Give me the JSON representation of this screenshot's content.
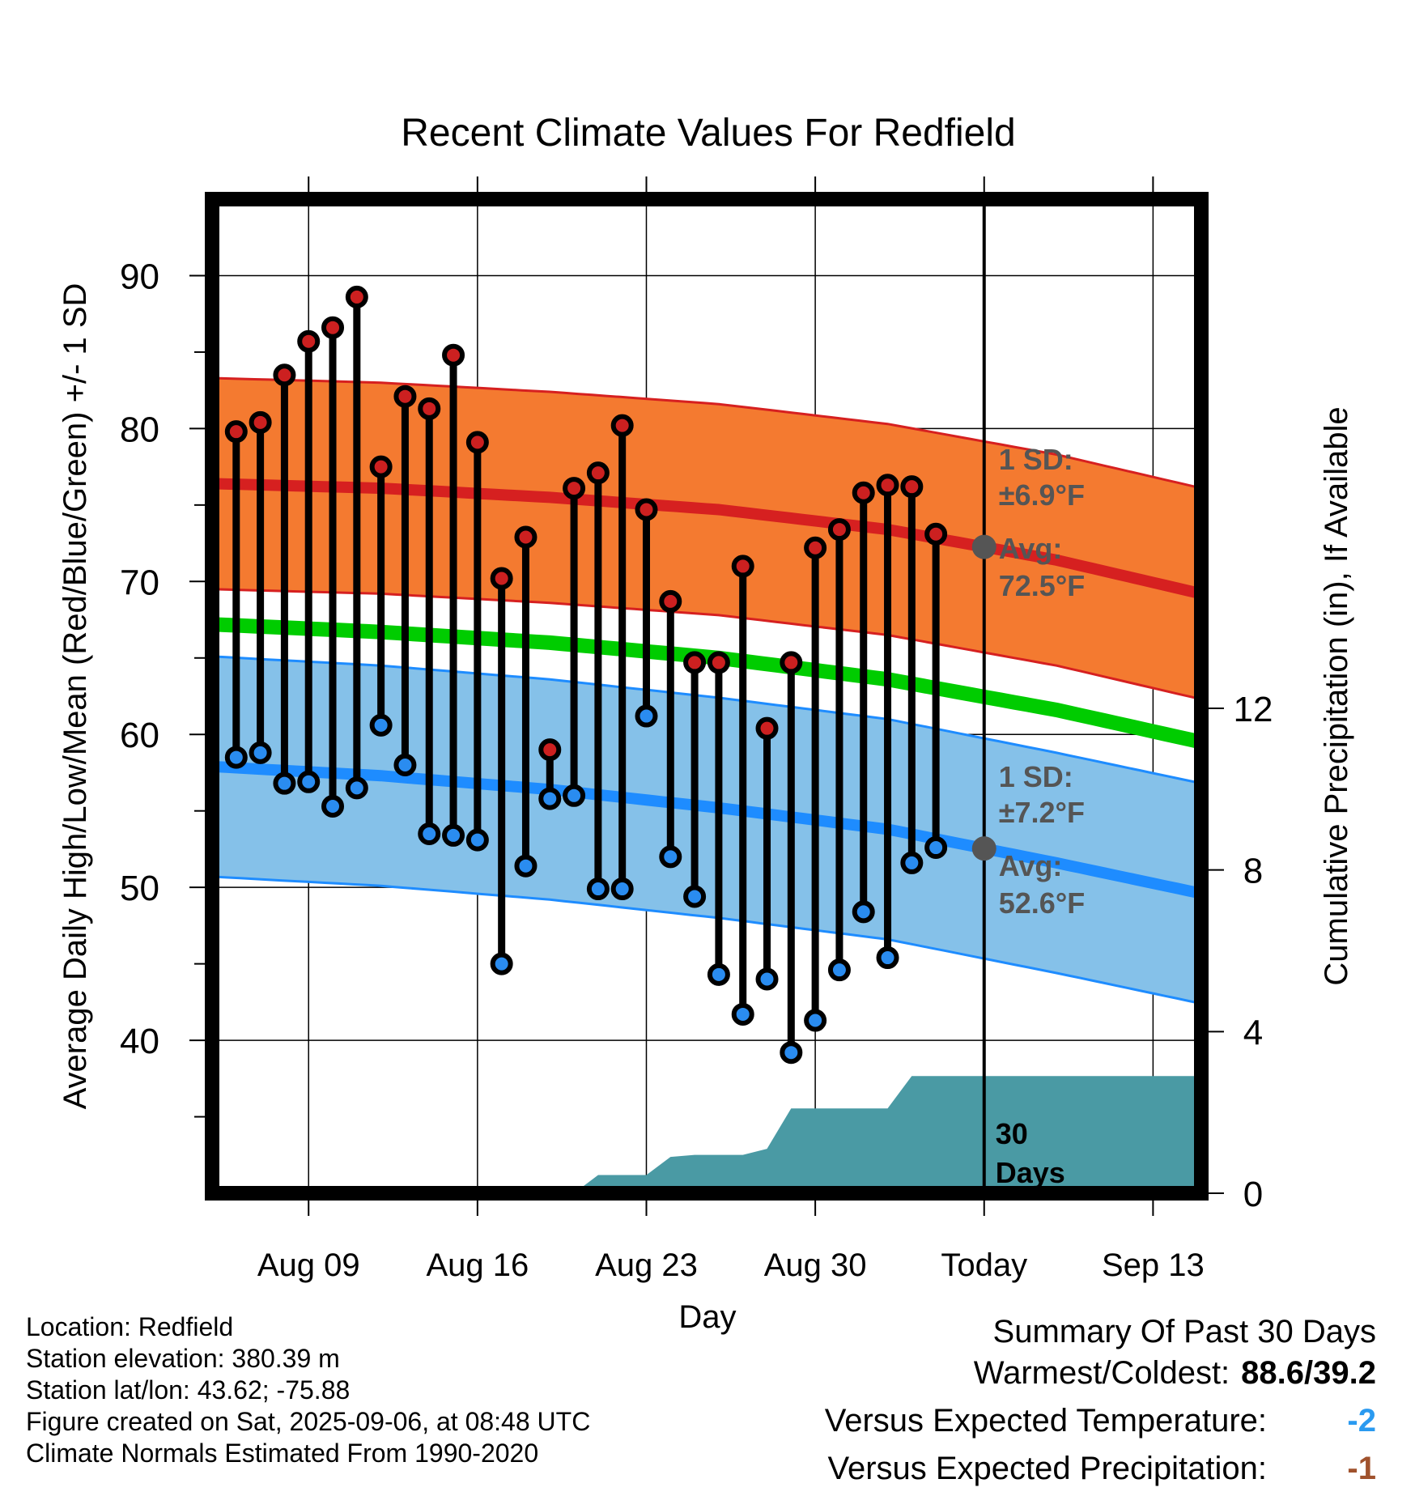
{
  "chart_data": {
    "type": "line",
    "title": "Recent Climate Values For Redfield",
    "xlabel": "Day",
    "ylabel": "Average Daily High/Low/Mean (Red/Blue/Green) +/- 1 SD",
    "y2label": "Cumulative Precipitation (in), If Available",
    "ylim": [
      30,
      95
    ],
    "y_ticks": [
      40,
      50,
      60,
      70,
      80,
      90
    ],
    "y2lim": [
      0,
      24.6
    ],
    "y2_ticks": [
      0,
      4,
      8,
      12
    ],
    "xlim": [
      "2025-08-05",
      "2025-09-15"
    ],
    "x_ticks": [
      "Aug 09",
      "Aug 16",
      "Aug 23",
      "Aug 30",
      "Today",
      "Sep 13"
    ],
    "x_tick_dates": [
      "2025-08-09",
      "2025-08-16",
      "2025-08-23",
      "2025-08-30",
      "2025-09-06",
      "2025-09-13"
    ],
    "grid": true,
    "today": "2025-09-06",
    "dates": [
      "2025-08-06",
      "2025-08-07",
      "2025-08-08",
      "2025-08-09",
      "2025-08-10",
      "2025-08-11",
      "2025-08-12",
      "2025-08-13",
      "2025-08-14",
      "2025-08-15",
      "2025-08-16",
      "2025-08-17",
      "2025-08-18",
      "2025-08-19",
      "2025-08-20",
      "2025-08-21",
      "2025-08-22",
      "2025-08-23",
      "2025-08-24",
      "2025-08-25",
      "2025-08-26",
      "2025-08-27",
      "2025-08-28",
      "2025-08-29",
      "2025-08-30",
      "2025-08-31",
      "2025-09-01",
      "2025-09-02",
      "2025-09-03",
      "2025-09-04",
      "2025-09-05"
    ],
    "highs": [
      79.8,
      80.4,
      83.5,
      85.7,
      86.6,
      88.6,
      77.5,
      82.1,
      81.3,
      84.8,
      79.1,
      70.2,
      72.9,
      59.0,
      76.1,
      77.1,
      80.2,
      74.7,
      68.7,
      64.7,
      64.7,
      71.0,
      60.4,
      64.7,
      72.2,
      73.4,
      75.8,
      76.3,
      76.2,
      73.1,
      null
    ],
    "lows": [
      58.5,
      58.8,
      56.8,
      56.9,
      55.3,
      56.5,
      60.6,
      58.0,
      53.5,
      53.4,
      53.1,
      45.0,
      51.4,
      55.8,
      56.0,
      49.9,
      49.9,
      61.2,
      52.0,
      49.4,
      44.3,
      41.7,
      44.0,
      39.2,
      41.3,
      44.6,
      48.4,
      45.4,
      51.6,
      52.6,
      null
    ],
    "normal_high": {
      "dates": [
        "2025-08-05",
        "2025-08-12",
        "2025-08-19",
        "2025-08-26",
        "2025-09-02",
        "2025-09-09",
        "2025-09-15"
      ],
      "values": [
        76.4,
        76.1,
        75.5,
        74.7,
        73.4,
        71.4,
        69.2
      ]
    },
    "normal_high_sd": 6.9,
    "normal_low": {
      "dates": [
        "2025-08-05",
        "2025-08-12",
        "2025-08-19",
        "2025-08-26",
        "2025-09-02",
        "2025-09-09",
        "2025-09-15"
      ],
      "values": [
        57.9,
        57.3,
        56.4,
        55.2,
        53.8,
        51.6,
        49.6
      ]
    },
    "normal_low_sd": 7.2,
    "normal_mean": {
      "dates": [
        "2025-08-05",
        "2025-08-12",
        "2025-08-19",
        "2025-08-26",
        "2025-09-02",
        "2025-09-09",
        "2025-09-15"
      ],
      "values": [
        67.2,
        66.7,
        66.0,
        65.0,
        63.6,
        61.6,
        59.5
      ]
    },
    "precip": {
      "dates": [
        "2025-08-05",
        "2025-08-20",
        "2025-08-21",
        "2025-08-23",
        "2025-08-24",
        "2025-08-25",
        "2025-08-26",
        "2025-08-27",
        "2025-08-28",
        "2025-08-29",
        "2025-08-30",
        "2025-08-31",
        "2025-09-01",
        "2025-09-02",
        "2025-09-03",
        "2025-09-04",
        "2025-09-15"
      ],
      "values": [
        0,
        0,
        0.45,
        0.45,
        0.9,
        0.95,
        0.95,
        0.95,
        1.1,
        2.1,
        2.1,
        2.1,
        2.1,
        2.1,
        2.9,
        2.9,
        2.9
      ]
    },
    "annotations": {
      "high_sd": "1 SD:",
      "high_sd_value": "±6.9°F",
      "high_avg": "Avg:",
      "high_avg_value": "72.5°F",
      "low_sd": "1 SD:",
      "low_sd_value": "±7.2°F",
      "low_avg": "Avg:",
      "low_avg_value": "52.6°F",
      "window_count": "30",
      "window_unit": "Days"
    },
    "colors": {
      "high_band": "#f47a30",
      "high_line": "#d62020",
      "low_band": "#85c1e9",
      "low_line": "#1e8cff",
      "mean_line": "#00cc00",
      "precip_fill": "#4a9aa4",
      "high_dot": "#cc2020",
      "low_dot": "#2a8cf0",
      "annotation": "#555555"
    }
  },
  "info": {
    "location": "Location: Redfield",
    "elevation": "Station elevation: 380.39 m",
    "latlon": "Station lat/lon: 43.62; -75.88",
    "created": "Figure created on Sat, 2025-09-06, at 08:48 UTC",
    "normals": "Climate Normals Estimated From 1990-2020"
  },
  "summary": {
    "title": "Summary Of Past 30 Days",
    "warm_cold_label": "Warmest/Coldest:",
    "warm_cold_value": "88.6/39.2",
    "temp_label": "Versus Expected Temperature:",
    "temp_value": "-2",
    "temp_color": "#2a9af0",
    "precip_label": "Versus Expected Precipitation:",
    "precip_value": "-1",
    "precip_color": "#a0522d"
  }
}
